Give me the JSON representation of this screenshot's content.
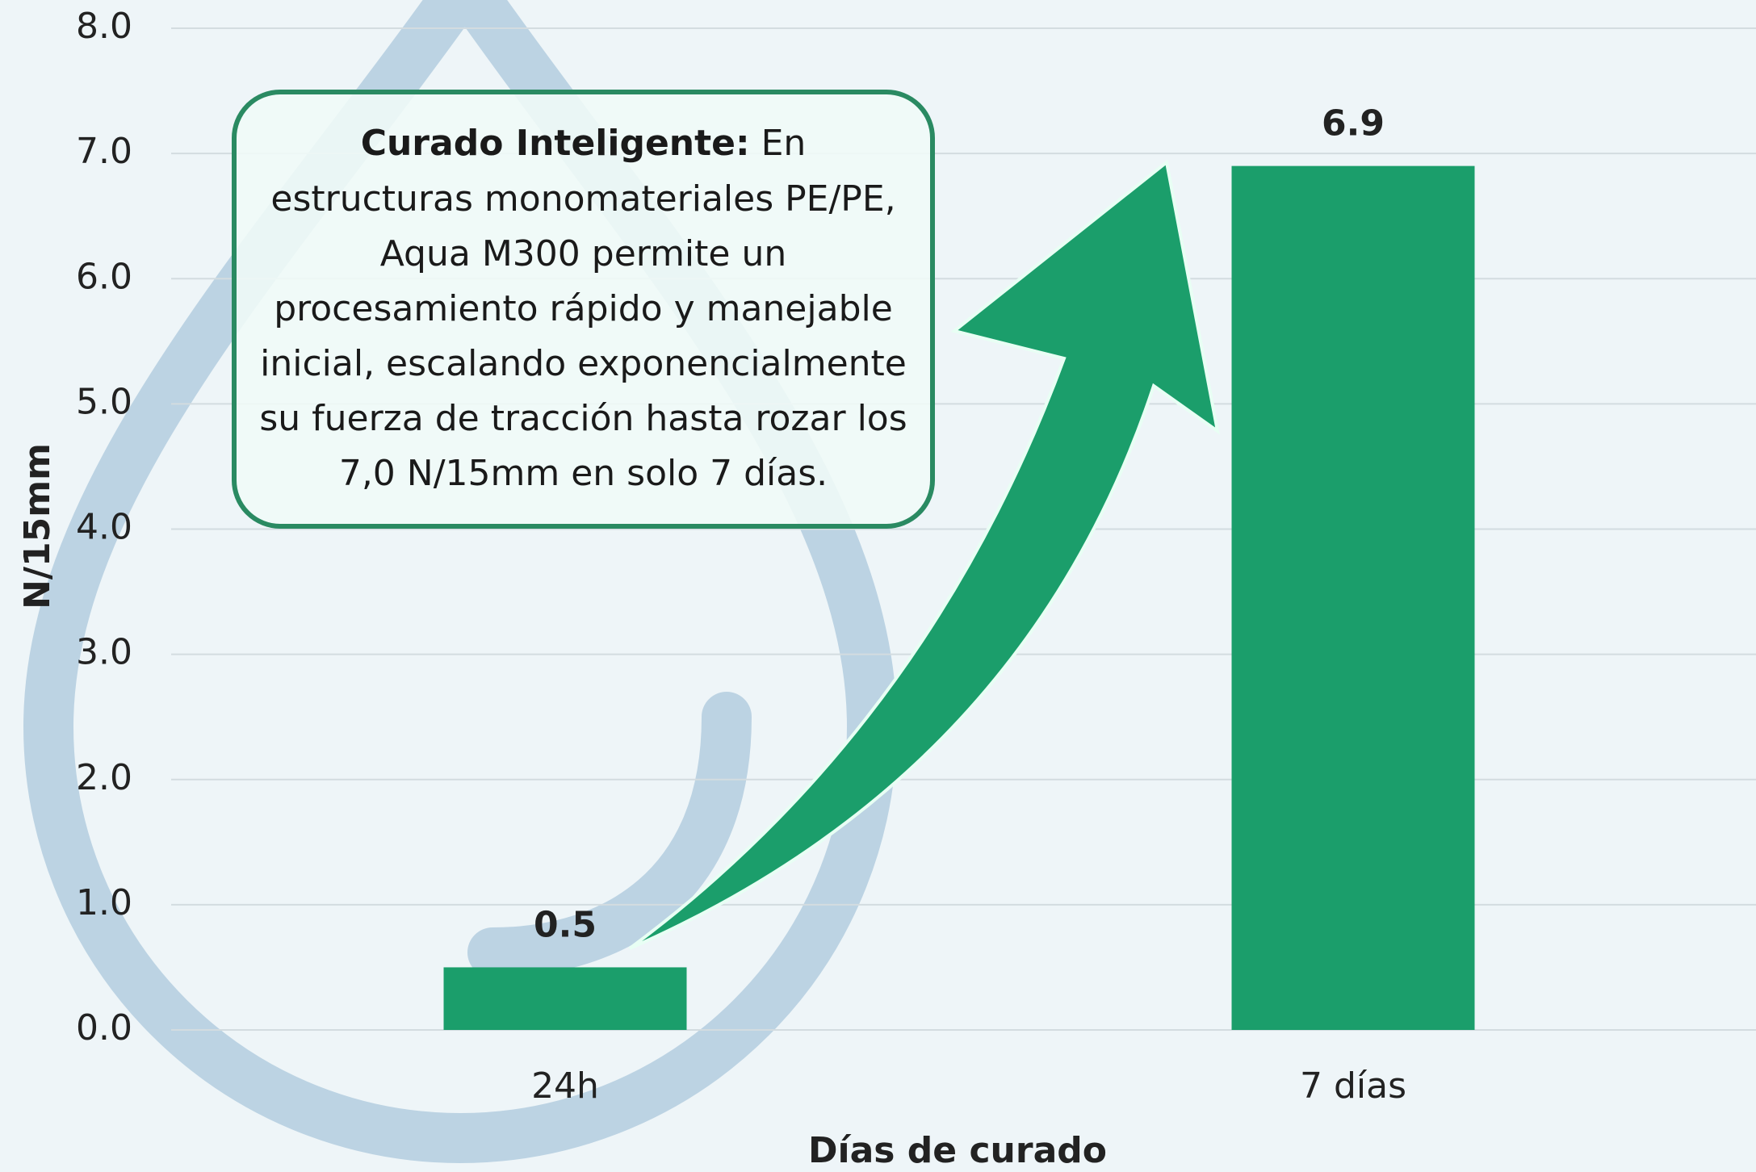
{
  "chart_data": {
    "type": "bar",
    "categories": [
      "24h",
      "7 días"
    ],
    "values": [
      0.5,
      6.9
    ],
    "color": "#1b9e6b",
    "ylim": [
      0,
      8
    ],
    "yticks": [
      {
        "value": 0,
        "label": "0.0"
      },
      {
        "value": 1,
        "label": "1.0"
      },
      {
        "value": 2,
        "label": "2.0"
      },
      {
        "value": 3,
        "label": "3.0"
      },
      {
        "value": 4,
        "label": "4.0"
      },
      {
        "value": 5,
        "label": "5.0"
      },
      {
        "value": 6,
        "label": "6.0"
      },
      {
        "value": 7,
        "label": "7.0"
      },
      {
        "value": 8,
        "label": "8.0"
      }
    ],
    "grid": true,
    "ylabel": "N/15mm",
    "xlabel": "Días de curado",
    "annotation": {
      "heading": "Curado Inteligente:",
      "text": "En estructuras monomateriales PE/PE, Aqua M300 permite un procesamiento rápido y manejable inicial, escalando exponencialmente su fuerza de tracción hasta rozar los 7,0 N/15mm en solo 7 días."
    }
  }
}
